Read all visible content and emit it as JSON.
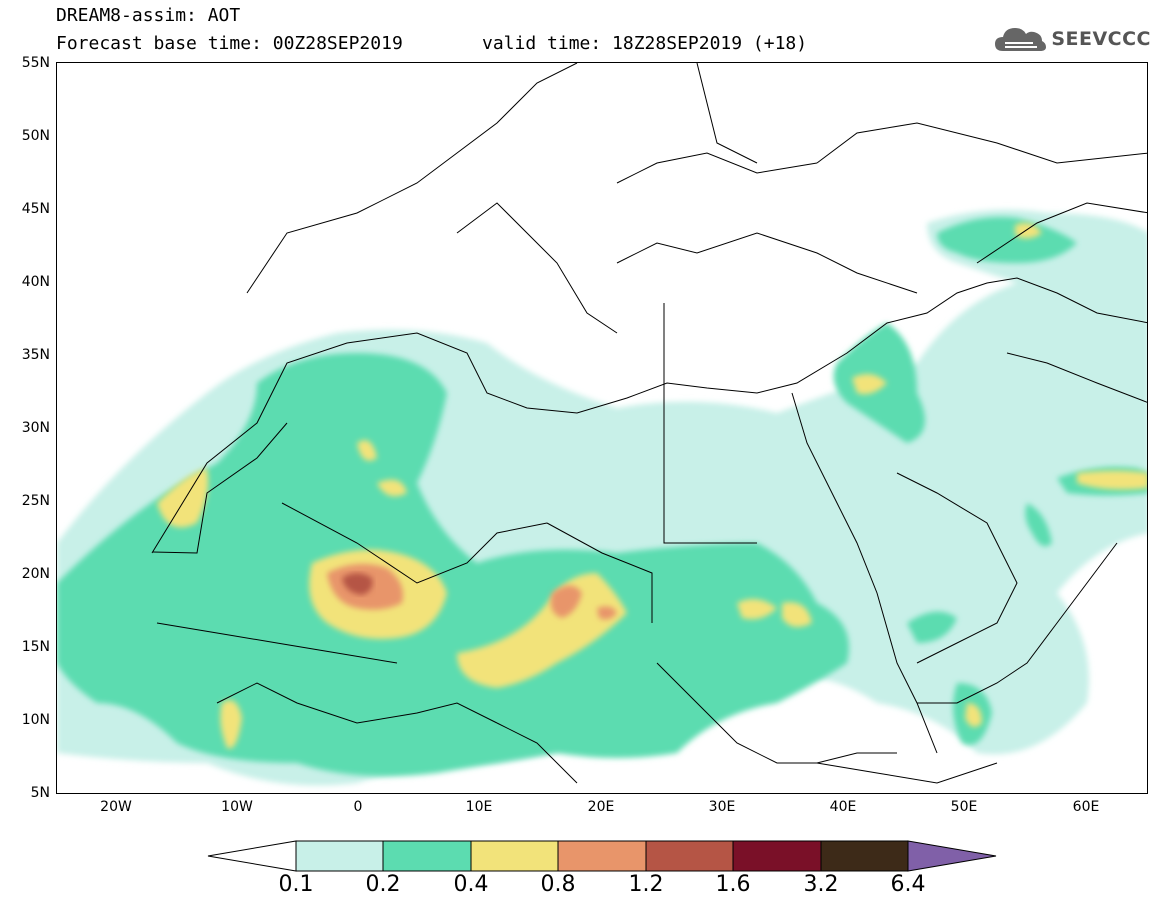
{
  "header": {
    "title": "DREAM8-assim: AOT",
    "base_time": "Forecast base time: 00Z28SEP2019",
    "valid_time": "valid time: 18Z28SEP2019 (+18)"
  },
  "logo": {
    "text": "SEEVCCC",
    "icon": "cloud-icon"
  },
  "map": {
    "projection": "cylindrical",
    "lon_range": [
      -25,
      65
    ],
    "lat_range": [
      5,
      55
    ],
    "lat_labels": [
      "55N",
      "50N",
      "45N",
      "40N",
      "35N",
      "30N",
      "25N",
      "20N",
      "15N",
      "10N",
      "5N"
    ],
    "lon_labels": [
      "20W",
      "10W",
      "0",
      "10E",
      "20E",
      "30E",
      "40E",
      "50E",
      "60E"
    ],
    "land_color": "#ffffff",
    "border_color": "#000000"
  },
  "colorbar": {
    "labels": [
      "0.1",
      "0.2",
      "0.4",
      "0.8",
      "1.2",
      "1.6",
      "3.2",
      "6.4"
    ],
    "colors": [
      "#c8f0e8",
      "#5cdcb0",
      "#f2e37a",
      "#e8956a",
      "#b55545",
      "#7a1028",
      "#3d2a18"
    ],
    "low_extend_color": "#ffffff",
    "high_extend_color": "#8060a8"
  }
}
